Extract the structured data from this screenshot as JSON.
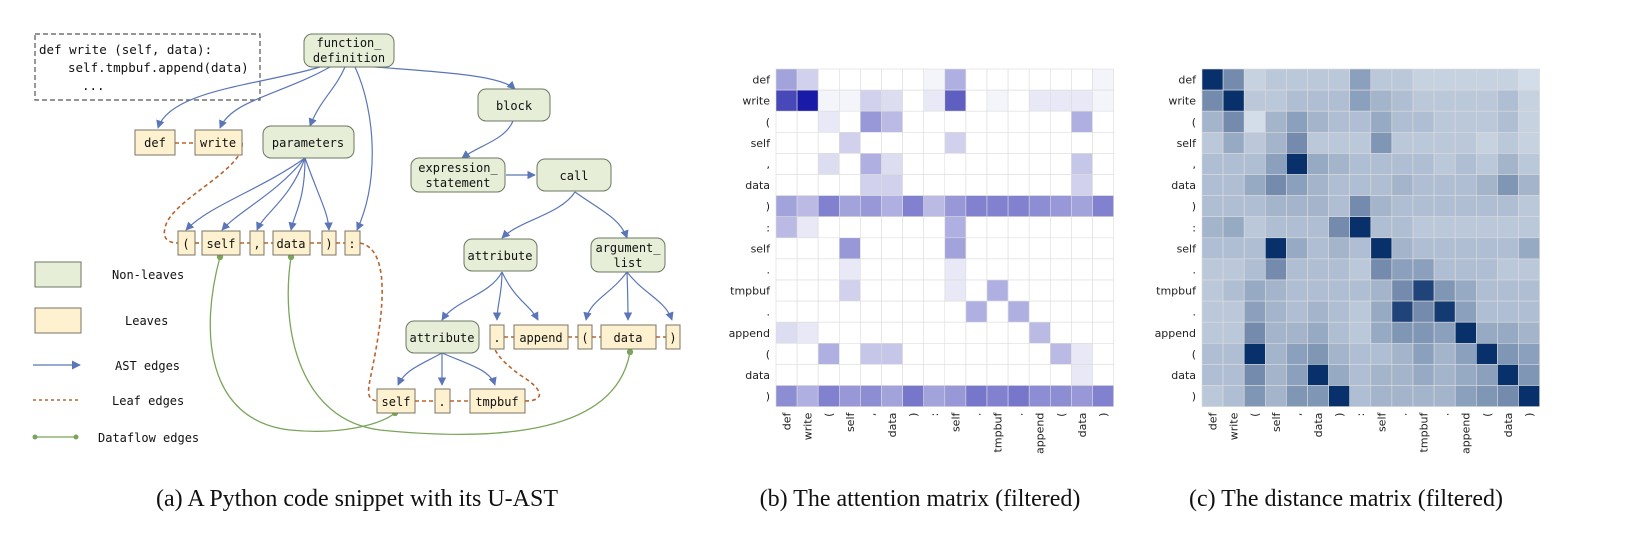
{
  "panel_a": {
    "caption": "(a)  A Python code snippet with its U-AST",
    "code": [
      "def write (self, data):",
      "self.tmpbuf.append(data)",
      "..."
    ],
    "nonleaves": {
      "function_definition": [
        "function_",
        "definition"
      ],
      "block": [
        "block"
      ],
      "parameters": [
        "parameters"
      ],
      "expression_statement": [
        "expression_",
        "statement"
      ],
      "call": [
        "call"
      ],
      "attribute_outer": [
        "attribute"
      ],
      "argument_list": [
        "argument_",
        "list"
      ],
      "attribute_inner": [
        "attribute"
      ]
    },
    "leaves": {
      "def": "def",
      "write": "write",
      "lparen": "(",
      "self": "self",
      "comma": ",",
      "data": "data",
      "rparen": ")",
      "colon": ":",
      "dot1": ".",
      "append": "append",
      "lparen2": "(",
      "data2": "data",
      "rparen2": ")",
      "self2": "self",
      "dot2": ".",
      "tmpbuf": "tmpbuf"
    },
    "legend": {
      "nonleaves": "Non-leaves",
      "leaves": "Leaves",
      "ast_edges": "AST edges",
      "leaf_edges": "Leaf edges",
      "dataflow_edges": "Dataflow edges"
    },
    "colors": {
      "nonleaf_fill": "#e6eed8",
      "nonleaf_stroke": "#6b7760",
      "leaf_fill": "#fdf1cf",
      "leaf_stroke": "#7a7466",
      "ast": "#5b76b8",
      "leaf_edge": "#b8652c",
      "dataflow": "#7aa55a"
    }
  },
  "panel_b": {
    "caption": "(b)  The attention matrix (filtered)",
    "chart_data": {
      "type": "heatmap",
      "rows": [
        "def",
        "write",
        "(",
        "self",
        ",",
        "data",
        ")",
        ":",
        "self",
        ".",
        "tmpbuf",
        ".",
        "append",
        "(",
        "data",
        ")"
      ],
      "cols": [
        "def",
        "write",
        "(",
        "self",
        ",",
        "data",
        ")",
        ":",
        "self",
        ".",
        "tmpbuf",
        ".",
        "append",
        "(",
        "data",
        ")"
      ],
      "values": [
        [
          0.4,
          0.2,
          0,
          0,
          0,
          0,
          0,
          0.05,
          0.35,
          0,
          0,
          0,
          0,
          0,
          0,
          0.05
        ],
        [
          0.8,
          1.0,
          0.05,
          0.05,
          0.2,
          0.15,
          0,
          0.1,
          0.7,
          0,
          0.05,
          0,
          0.1,
          0.1,
          0.1,
          0.05
        ],
        [
          0,
          0,
          0.1,
          0,
          0.45,
          0.3,
          0,
          0,
          0,
          0,
          0,
          0,
          0,
          0,
          0.35,
          0
        ],
        [
          0,
          0,
          0,
          0.2,
          0,
          0,
          0,
          0,
          0.2,
          0,
          0,
          0,
          0,
          0,
          0,
          0
        ],
        [
          0,
          0,
          0.15,
          0,
          0.35,
          0.15,
          0,
          0,
          0,
          0,
          0,
          0,
          0,
          0,
          0.25,
          0
        ],
        [
          0,
          0,
          0,
          0,
          0.2,
          0.2,
          0,
          0,
          0,
          0,
          0,
          0,
          0,
          0,
          0.2,
          0
        ],
        [
          0.4,
          0.3,
          0.55,
          0.4,
          0.45,
          0.35,
          0.55,
          0.3,
          0.45,
          0.55,
          0.55,
          0.55,
          0.5,
          0.45,
          0.4,
          0.55
        ],
        [
          0.3,
          0.1,
          0,
          0,
          0,
          0,
          0,
          0,
          0.35,
          0,
          0,
          0,
          0,
          0,
          0,
          0
        ],
        [
          0,
          0,
          0,
          0.45,
          0,
          0,
          0,
          0,
          0.4,
          0,
          0,
          0,
          0,
          0,
          0,
          0
        ],
        [
          0,
          0,
          0,
          0.1,
          0,
          0,
          0,
          0,
          0.1,
          0,
          0,
          0,
          0,
          0,
          0,
          0
        ],
        [
          0,
          0,
          0,
          0.2,
          0,
          0,
          0,
          0,
          0.1,
          0,
          0.35,
          0,
          0,
          0,
          0,
          0
        ],
        [
          0,
          0,
          0,
          0,
          0,
          0,
          0,
          0,
          0,
          0.35,
          0,
          0.35,
          0,
          0,
          0,
          0
        ],
        [
          0.15,
          0.1,
          0,
          0,
          0,
          0,
          0,
          0,
          0,
          0,
          0,
          0,
          0.3,
          0,
          0,
          0
        ],
        [
          0,
          0,
          0.35,
          0,
          0.25,
          0.25,
          0,
          0,
          0,
          0,
          0,
          0,
          0,
          0.3,
          0.1,
          0
        ],
        [
          0,
          0,
          0,
          0,
          0,
          0,
          0,
          0,
          0,
          0,
          0,
          0,
          0,
          0,
          0.1,
          0
        ],
        [
          0.5,
          0.35,
          0.55,
          0.45,
          0.5,
          0.4,
          0.6,
          0.4,
          0.45,
          0.6,
          0.55,
          0.6,
          0.5,
          0.5,
          0.45,
          0.55
        ]
      ],
      "color_low": "#ffffff",
      "color_high": "#1a1aa8"
    }
  },
  "panel_c": {
    "caption": "(c)  The distance matrix (filtered)",
    "chart_data": {
      "type": "heatmap",
      "rows": [
        "def",
        "write",
        "(",
        "self",
        ",",
        "data",
        ")",
        ":",
        "self",
        ".",
        "tmpbuf",
        ".",
        "append",
        "(",
        "data",
        ")"
      ],
      "cols": [
        "def",
        "write",
        "(",
        "self",
        ",",
        "data",
        ")",
        ":",
        "self",
        ".",
        "tmpbuf",
        ".",
        "append",
        "(",
        "data",
        ")"
      ],
      "values": [
        [
          1.0,
          0.55,
          0.2,
          0.25,
          0.25,
          0.25,
          0.25,
          0.45,
          0.25,
          0.25,
          0.2,
          0.2,
          0.2,
          0.2,
          0.2,
          0.15
        ],
        [
          0.55,
          1.0,
          0.25,
          0.25,
          0.3,
          0.3,
          0.3,
          0.45,
          0.35,
          0.3,
          0.25,
          0.25,
          0.25,
          0.25,
          0.3,
          0.2
        ],
        [
          0.35,
          0.55,
          0.15,
          0.35,
          0.45,
          0.35,
          0.3,
          0.3,
          0.4,
          0.3,
          0.3,
          0.25,
          0.25,
          0.25,
          0.3,
          0.2
        ],
        [
          0.25,
          0.4,
          0.25,
          0.35,
          0.55,
          0.25,
          0.25,
          0.25,
          0.5,
          0.25,
          0.25,
          0.25,
          0.25,
          0.2,
          0.25,
          0.2
        ],
        [
          0.3,
          0.3,
          0.3,
          0.45,
          1.0,
          0.4,
          0.35,
          0.3,
          0.3,
          0.3,
          0.3,
          0.25,
          0.3,
          0.25,
          0.35,
          0.25
        ],
        [
          0.3,
          0.3,
          0.4,
          0.55,
          0.45,
          0.35,
          0.3,
          0.3,
          0.3,
          0.35,
          0.3,
          0.3,
          0.3,
          0.35,
          0.5,
          0.35
        ],
        [
          0.3,
          0.3,
          0.3,
          0.35,
          0.35,
          0.35,
          0.3,
          0.55,
          0.35,
          0.3,
          0.3,
          0.3,
          0.3,
          0.3,
          0.3,
          0.25
        ],
        [
          0.35,
          0.4,
          0.25,
          0.3,
          0.3,
          0.3,
          0.55,
          1.0,
          0.3,
          0.3,
          0.25,
          0.25,
          0.25,
          0.25,
          0.25,
          0.25
        ],
        [
          0.3,
          0.3,
          0.3,
          1.0,
          0.4,
          0.3,
          0.35,
          0.3,
          1.0,
          0.35,
          0.3,
          0.3,
          0.3,
          0.3,
          0.3,
          0.4
        ],
        [
          0.25,
          0.25,
          0.3,
          0.55,
          0.3,
          0.3,
          0.3,
          0.25,
          0.55,
          0.45,
          0.45,
          0.3,
          0.3,
          0.3,
          0.25,
          0.25
        ],
        [
          0.25,
          0.3,
          0.4,
          0.35,
          0.3,
          0.3,
          0.3,
          0.3,
          0.35,
          0.55,
          0.9,
          0.5,
          0.4,
          0.3,
          0.3,
          0.3
        ],
        [
          0.25,
          0.25,
          0.45,
          0.35,
          0.3,
          0.35,
          0.3,
          0.25,
          0.4,
          0.9,
          0.55,
          0.95,
          0.45,
          0.3,
          0.3,
          0.3
        ],
        [
          0.25,
          0.25,
          0.55,
          0.35,
          0.35,
          0.4,
          0.3,
          0.25,
          0.4,
          0.5,
          0.5,
          0.45,
          1.0,
          0.4,
          0.4,
          0.35
        ],
        [
          0.3,
          0.3,
          1.0,
          0.35,
          0.45,
          0.5,
          0.35,
          0.3,
          0.3,
          0.35,
          0.45,
          0.35,
          0.45,
          1.0,
          0.5,
          0.45
        ],
        [
          0.3,
          0.3,
          0.55,
          0.35,
          0.45,
          1.0,
          0.4,
          0.3,
          0.35,
          0.35,
          0.4,
          0.35,
          0.4,
          0.45,
          1.0,
          0.5
        ],
        [
          0.25,
          0.3,
          0.5,
          0.35,
          0.5,
          0.5,
          1.0,
          0.3,
          0.35,
          0.35,
          0.35,
          0.35,
          0.45,
          0.5,
          0.55,
          1.0
        ]
      ],
      "color_low": "#f7fbff",
      "color_high": "#08306b"
    }
  }
}
